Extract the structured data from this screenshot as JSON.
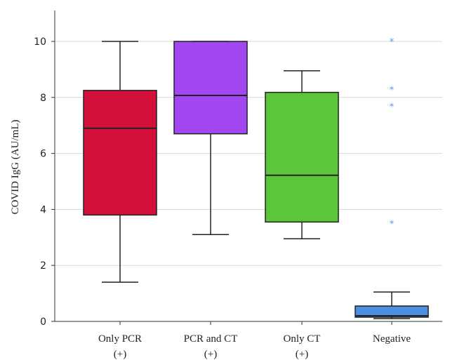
{
  "chart_data": {
    "type": "boxplot",
    "title": "",
    "xlabel": "",
    "ylabel": "COVID IgG (AU/mL)",
    "ylim": [
      0,
      11
    ],
    "yticks": [
      0,
      2,
      4,
      6,
      8,
      10
    ],
    "grid": "horizontal",
    "categories": [
      {
        "line1": "Only PCR",
        "line2": "(+)"
      },
      {
        "line1": "PCR and CT",
        "line2": "(+)"
      },
      {
        "line1": "Only CT",
        "line2": "(+)"
      },
      {
        "line1": "Negative",
        "line2": ""
      }
    ],
    "boxes": [
      {
        "min": 1.4,
        "q1": 3.8,
        "median": 6.9,
        "q3": 8.25,
        "max": 10.0,
        "color": "#d2103a",
        "outliers": []
      },
      {
        "min": 3.1,
        "q1": 6.7,
        "median": 8.07,
        "q3": 10.0,
        "max": 10.0,
        "color": "#a146f0",
        "outliers": []
      },
      {
        "min": 2.95,
        "q1": 3.55,
        "median": 5.22,
        "q3": 8.18,
        "max": 8.95,
        "color": "#5cc63a",
        "outliers": []
      },
      {
        "min": 0.1,
        "q1": 0.15,
        "median": 0.2,
        "q3": 0.55,
        "max": 1.05,
        "color": "#4a8fe0",
        "outliers": [
          10.0,
          8.28,
          7.68,
          3.5
        ]
      }
    ],
    "outlier_color": "#5b9be6"
  }
}
